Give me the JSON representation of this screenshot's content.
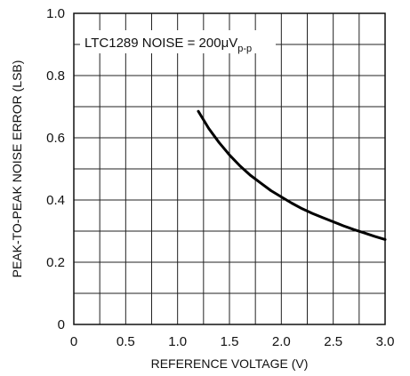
{
  "chart_data": {
    "type": "line",
    "title": "",
    "xlabel": "REFERENCE VOLTAGE (V)",
    "ylabel": "PEAK-TO-PEAK NOISE ERROR (LSB)",
    "xlim": [
      0,
      3.0
    ],
    "ylim": [
      0,
      1.0
    ],
    "x_ticks": [
      "0",
      "0.5",
      "1.0",
      "1.5",
      "2.0",
      "2.5",
      "3.0"
    ],
    "y_ticks": [
      "0",
      "0.2",
      "0.4",
      "0.6",
      "0.8",
      "1.0"
    ],
    "grid": true,
    "annotation": {
      "prefix": "LTC1289 NOISE = 200",
      "mu": "μ",
      "unit": "V",
      "subscript": "p-p"
    },
    "series": [
      {
        "x": [
          1.2,
          1.3,
          1.4,
          1.5,
          1.6,
          1.7,
          1.8,
          1.9,
          2.0,
          2.1,
          2.2,
          2.3,
          2.4,
          2.5,
          2.6,
          2.7,
          2.8,
          2.9,
          3.0
        ],
        "y": [
          0.685,
          0.63,
          0.585,
          0.545,
          0.51,
          0.48,
          0.455,
          0.43,
          0.41,
          0.39,
          0.372,
          0.357,
          0.343,
          0.33,
          0.317,
          0.305,
          0.294,
          0.283,
          0.273
        ],
        "color": "#000000"
      }
    ]
  }
}
